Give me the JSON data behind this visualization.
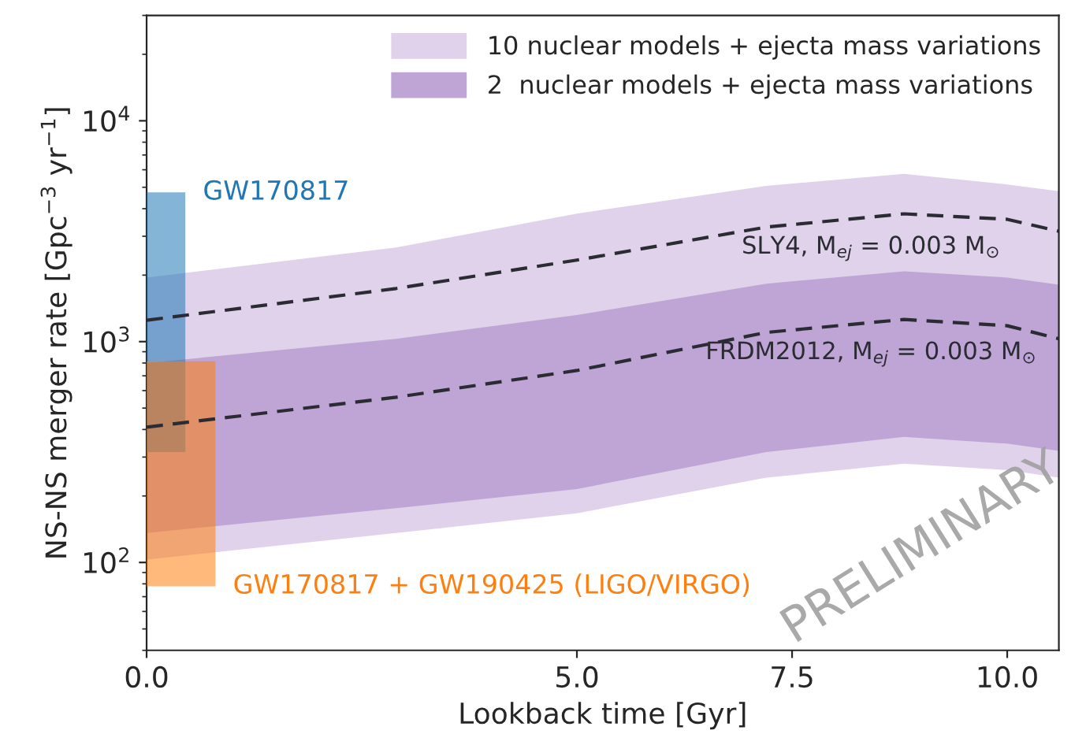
{
  "chart_data": {
    "type": "area",
    "xlabel": "Lookback time [Gyr]",
    "ylabel": "NS-NS merger rate [Gpc$^{−3}$ yr$^{−1}$]",
    "x": [
      0,
      2.9,
      5.0,
      7.2,
      8.8,
      10.0,
      10.6
    ],
    "series": [
      {
        "name": "10 nuclear models + ejecta mass variations",
        "color": "#dfd2ea",
        "values": [
          null,
          null,
          null,
          null,
          null,
          null,
          null
        ],
        "lower": [
          103,
          136,
          167,
          242,
          280,
          262,
          242
        ],
        "upper": [
          1950,
          2670,
          3800,
          5070,
          5750,
          5150,
          4800
        ]
      },
      {
        "name": "2  nuclear models + ejecta mass variations",
        "color": "#bfa5d5",
        "values": [
          null,
          null,
          null,
          null,
          null,
          null,
          null
        ],
        "lower": [
          136,
          176,
          215,
          316,
          370,
          345,
          320
        ],
        "upper": [
          800,
          1030,
          1320,
          1830,
          2080,
          1950,
          1810
        ]
      },
      {
        "name": "SLY4, M$_{ej}$ = 0.003 M$_{⊙}$",
        "type": "line",
        "color": "#2b2b33",
        "line_style": "dashed",
        "values": [
          1250,
          1740,
          2340,
          3300,
          3790,
          3580,
          3160
        ]
      },
      {
        "name": "FRDM2012, M$_{ej}$ = 0.003 M$_{⊙}$",
        "type": "line",
        "color": "#2b2b33",
        "line_style": "dashed",
        "values": [
          410,
          560,
          740,
          1100,
          1260,
          1180,
          1030
        ]
      },
      {
        "name": "GW170817",
        "color": "#1f77b4",
        "x": [
          0,
          0.45
        ],
        "values": [
          null,
          null
        ],
        "lower": [
          316,
          316
        ],
        "upper": [
          4740,
          4740
        ]
      },
      {
        "name": "GW170817 + GW190425 (LIGO/VIRGO)",
        "color": "#ff7f0e",
        "x": [
          0,
          0.8
        ],
        "values": [
          null,
          null
        ],
        "lower": [
          78,
          78
        ],
        "upper": [
          815,
          815
        ]
      }
    ],
    "log": "y",
    "xlim": [
      0,
      10.6
    ],
    "ylim": [
      40,
      30000
    ],
    "xticks": [
      {
        "value": 0,
        "label": "0.0"
      },
      {
        "value": 5,
        "label": "5.0"
      },
      {
        "value": 7.5,
        "label": "7.5"
      },
      {
        "value": 10,
        "label": "10.0"
      }
    ],
    "yticks": [
      {
        "value": 100,
        "label": "10$^{2}$"
      },
      {
        "value": 1000,
        "label": "10$^{3}$"
      },
      {
        "value": 10000,
        "label": "10$^{4}$"
      }
    ],
    "legend": "top right",
    "grid": false,
    "annotations": [
      "PRELIMINARY"
    ]
  }
}
